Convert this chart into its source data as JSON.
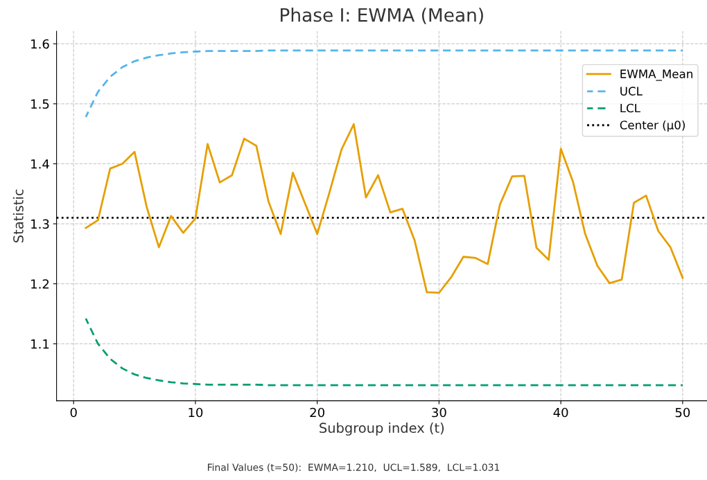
{
  "chart_data": {
    "type": "line",
    "title": "Phase I: EWMA (Mean)",
    "xlabel": "Subgroup index (t)",
    "ylabel": "Statistic",
    "x": [
      1,
      2,
      3,
      4,
      5,
      6,
      7,
      8,
      9,
      10,
      11,
      12,
      13,
      14,
      15,
      16,
      17,
      18,
      19,
      20,
      21,
      22,
      23,
      24,
      25,
      26,
      27,
      28,
      29,
      30,
      31,
      32,
      33,
      34,
      35,
      36,
      37,
      38,
      39,
      40,
      41,
      42,
      43,
      44,
      45,
      46,
      47,
      48,
      49,
      50
    ],
    "series": [
      {
        "name": "EWMA_Mean",
        "color": "#e69f00",
        "line_style": "solid",
        "values": [
          1.293,
          1.306,
          1.392,
          1.4,
          1.42,
          1.328,
          1.261,
          1.313,
          1.285,
          1.309,
          1.433,
          1.369,
          1.381,
          1.442,
          1.43,
          1.337,
          1.283,
          1.385,
          1.334,
          1.283,
          1.352,
          1.424,
          1.466,
          1.344,
          1.381,
          1.319,
          1.325,
          1.272,
          1.186,
          1.185,
          1.211,
          1.245,
          1.243,
          1.233,
          1.332,
          1.379,
          1.38,
          1.26,
          1.24,
          1.425,
          1.37,
          1.283,
          1.23,
          1.201,
          1.207,
          1.335,
          1.347,
          1.288,
          1.261,
          1.21
        ]
      },
      {
        "name": "UCL",
        "color": "#56b4e9",
        "line_style": "dashed",
        "values": [
          1.478,
          1.52,
          1.545,
          1.561,
          1.571,
          1.577,
          1.581,
          1.584,
          1.586,
          1.587,
          1.588,
          1.588,
          1.588,
          1.588,
          1.588,
          1.589,
          1.589,
          1.589,
          1.589,
          1.589,
          1.589,
          1.589,
          1.589,
          1.589,
          1.589,
          1.589,
          1.589,
          1.589,
          1.589,
          1.589,
          1.589,
          1.589,
          1.589,
          1.589,
          1.589,
          1.589,
          1.589,
          1.589,
          1.589,
          1.589,
          1.589,
          1.589,
          1.589,
          1.589,
          1.589,
          1.589,
          1.589,
          1.589,
          1.589,
          1.589
        ]
      },
      {
        "name": "LCL",
        "color": "#009e73",
        "line_style": "dashed",
        "values": [
          1.142,
          1.1,
          1.075,
          1.059,
          1.049,
          1.043,
          1.039,
          1.036,
          1.034,
          1.033,
          1.032,
          1.032,
          1.032,
          1.032,
          1.032,
          1.031,
          1.031,
          1.031,
          1.031,
          1.031,
          1.031,
          1.031,
          1.031,
          1.031,
          1.031,
          1.031,
          1.031,
          1.031,
          1.031,
          1.031,
          1.031,
          1.031,
          1.031,
          1.031,
          1.031,
          1.031,
          1.031,
          1.031,
          1.031,
          1.031,
          1.031,
          1.031,
          1.031,
          1.031,
          1.031,
          1.031,
          1.031,
          1.031,
          1.031,
          1.031
        ]
      }
    ],
    "ref_lines": [
      {
        "axis": "y",
        "value": 1.31,
        "label": "Center (μ0)",
        "color": "#000000",
        "line_style": "dotted"
      }
    ],
    "xlim": [
      -1.4,
      52.0
    ],
    "ylim": [
      1.005,
      1.621
    ],
    "xticks": [
      0,
      10,
      20,
      30,
      40,
      50
    ],
    "yticks": [
      1.1,
      1.2,
      1.3,
      1.4,
      1.5,
      1.6
    ],
    "grid": true,
    "legend": "top right",
    "marker": "none",
    "annotations": [
      "Final Values (t=50):  EWMA=1.210,  UCL=1.589,  LCL=1.031"
    ]
  }
}
